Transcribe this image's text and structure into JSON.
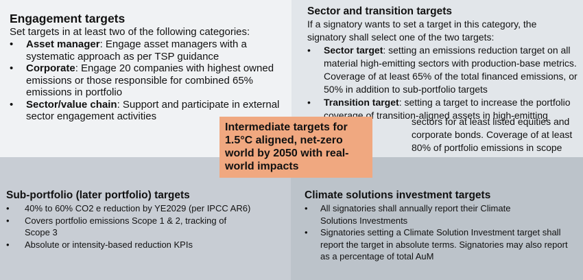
{
  "engagement": {
    "title": "Engagement targets",
    "intro": "Set targets in at least two of the following categories:",
    "items": [
      {
        "bold": "Asset manager",
        "text": ": Engage asset managers with a systematic approach as per TSP guidance"
      },
      {
        "bold": "Corporate",
        "text": ": Engage 20 companies with highest owned emissions or those responsible for combined 65% emissions in portfolio"
      },
      {
        "bold": "Sector/value chain",
        "text": ": Support and participate in external sector engagement activities"
      }
    ]
  },
  "sector_transition": {
    "title": "Sector and transition targets",
    "intro_lines": [
      "If a signatory wants to set a target in this category, the",
      "signatory shall select one of the two targets:"
    ],
    "items": [
      {
        "bold": "Sector target",
        "text": ": setting an emissions reduction target on all material high-emitting sectors with production-base metrics. Coverage of at least 65% of the total financed emissions, or 50% in addition to sub-portfolio targets"
      },
      {
        "bold": "Transition target",
        "text": ": setting a target to increase the portfolio coverage of transition-aligned assets in high-emitting"
      }
    ],
    "continuation_lines": [
      "sectors for at least listed equities and",
      "corporate bonds. Coverage of at least",
      "80% of portfolio emissions in scope"
    ]
  },
  "center": {
    "text": "Intermediate targets for 1.5°C aligned, net-zero world by 2050 with real-world impacts"
  },
  "sub_portfolio": {
    "title": "Sub-portfolio (later portfolio) targets",
    "items": [
      "40% to 60% CO2 e reduction by YE2029 (per IPCC AR6)",
      "Covers portfolio emissions Scope 1 & 2, tracking of Scope 3",
      "Absolute or intensity-based reduction KPIs"
    ]
  },
  "climate_solutions": {
    "title": "Climate solutions investment targets",
    "items": [
      "All signatories shall annually report their Climate Solutions Investments",
      "Signatories setting a Climate Solution Investment target shall report the target in absolute terms. Signatories may also report as a percentage of total AuM"
    ]
  },
  "colors": {
    "center_box": "#f0a880",
    "top_left": "#f0f2f4",
    "top_right": "#e2e6ea",
    "bottom_left": "#c8cdd4",
    "bottom_right": "#bcc3ca"
  },
  "bullet": "•"
}
